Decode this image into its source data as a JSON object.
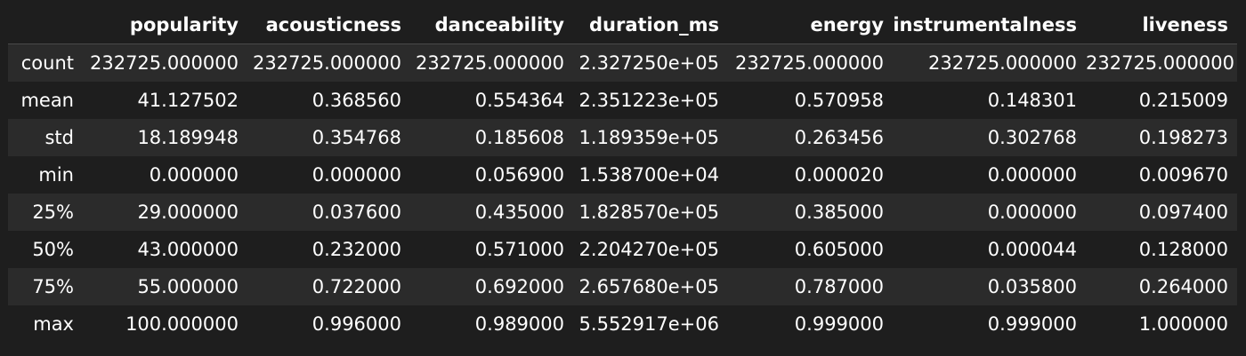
{
  "columns": [
    "popularity",
    "acousticness",
    "danceability",
    "duration_ms",
    "energy",
    "instrumentalness",
    "liveness"
  ],
  "rows": [
    {
      "label": "count",
      "values": [
        "232725.000000",
        "232725.000000",
        "232725.000000",
        "2.327250e+05",
        "232725.000000",
        "232725.000000",
        "232725.000000"
      ]
    },
    {
      "label": "mean",
      "values": [
        "41.127502",
        "0.368560",
        "0.554364",
        "2.351223e+05",
        "0.570958",
        "0.148301",
        "0.215009"
      ]
    },
    {
      "label": "std",
      "values": [
        "18.189948",
        "0.354768",
        "0.185608",
        "1.189359e+05",
        "0.263456",
        "0.302768",
        "0.198273"
      ]
    },
    {
      "label": "min",
      "values": [
        "0.000000",
        "0.000000",
        "0.056900",
        "1.538700e+04",
        "0.000020",
        "0.000000",
        "0.009670"
      ]
    },
    {
      "label": "25%",
      "values": [
        "29.000000",
        "0.037600",
        "0.435000",
        "1.828570e+05",
        "0.385000",
        "0.000000",
        "0.097400"
      ]
    },
    {
      "label": "50%",
      "values": [
        "43.000000",
        "0.232000",
        "0.571000",
        "2.204270e+05",
        "0.605000",
        "0.000044",
        "0.128000"
      ]
    },
    {
      "label": "75%",
      "values": [
        "55.000000",
        "0.722000",
        "0.692000",
        "2.657680e+05",
        "0.787000",
        "0.035800",
        "0.264000"
      ]
    },
    {
      "label": "max",
      "values": [
        "100.000000",
        "0.996000",
        "0.989000",
        "5.552917e+06",
        "0.999000",
        "0.999000",
        "1.000000"
      ]
    }
  ],
  "colors": {
    "background": "#1e1e1e",
    "row_stripe": "#2b2b2b",
    "text": "#ffffff"
  }
}
